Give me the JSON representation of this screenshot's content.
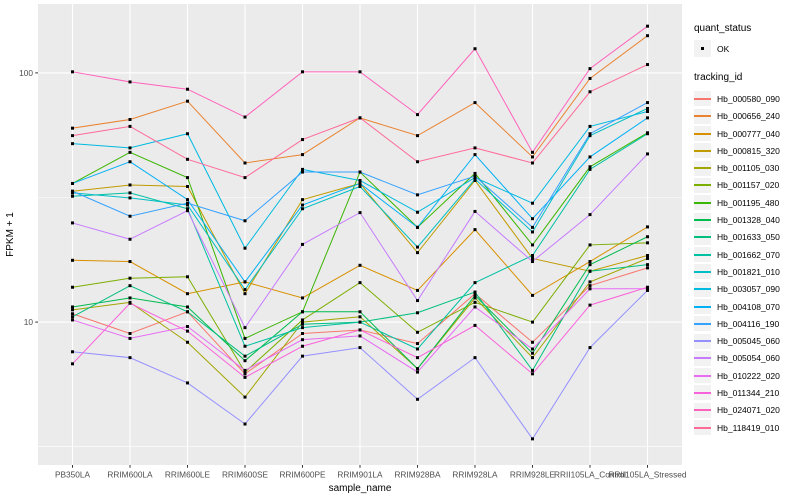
{
  "figure": {
    "background": "#FFFFFF",
    "panel_background": "#EBEBEB",
    "grid_color": "#FFFFFF",
    "tick_color": "#333333",
    "tick_label_color": "#4D4D4D",
    "point_color": "#000000"
  },
  "legend": {
    "quant_status": {
      "title": "quant_status",
      "items": [
        {
          "label": "OK",
          "marker": "black-point",
          "marker_color": "#000000"
        }
      ]
    },
    "tracking_id": {
      "title": "tracking_id"
    }
  },
  "chart_data": {
    "type": "line",
    "title": "",
    "xlabel": "sample_name",
    "ylabel": "FPKM + 1",
    "y_scale": "log10",
    "ylim": [
      2.67,
      189
    ],
    "y_major_ticks": [
      100,
      10
    ],
    "y_tick_labels": [
      "100",
      "10"
    ],
    "y_minor_ticks": [
      31.623,
      3.162
    ],
    "grid": true,
    "legend_position": "right",
    "point_marker": "small-black-square",
    "quant_status": "OK",
    "categories": [
      "PB350LA",
      "RRIM600LA",
      "RRIM600LE",
      "RRIM600SE",
      "RRIM600PE",
      "RRIM901LA",
      "RRIM928BA",
      "RRIM928LA",
      "RRIM928LE",
      "RRII105LA_Control",
      "RRII105LA_Stressed"
    ],
    "series": [
      {
        "name": "Hb_000580_090",
        "color": "#F8766D",
        "values": [
          10.8,
          9.0,
          11.0,
          6.2,
          9.0,
          9.3,
          8.2,
          13.0,
          8.3,
          14.0,
          16.5
        ]
      },
      {
        "name": "Hb_000656_240",
        "color": "#EA8331",
        "values": [
          60,
          65,
          77,
          43.5,
          47,
          66,
          56,
          76,
          46,
          95,
          141
        ]
      },
      {
        "name": "Hb_000777_040",
        "color": "#D89000",
        "values": [
          17.7,
          17.5,
          13.0,
          14.5,
          12.5,
          16.9,
          13.4,
          23.5,
          12.8,
          17.5,
          24.1
        ]
      },
      {
        "name": "Hb_000815_320",
        "color": "#C09B00",
        "values": [
          33.5,
          35.5,
          35.0,
          13.0,
          31.0,
          36.0,
          19.0,
          37.0,
          18.0,
          16.0,
          18.5
        ]
      },
      {
        "name": "Hb_001105_030",
        "color": "#A3A500",
        "values": [
          11.2,
          12.0,
          8.3,
          5.0,
          10.0,
          10.5,
          6.5,
          12.5,
          7.2,
          14.5,
          18.0
        ]
      },
      {
        "name": "Hb_001157_020",
        "color": "#7CAE00",
        "values": [
          13.8,
          15.0,
          15.2,
          6.3,
          10.2,
          14.4,
          9.1,
          12.0,
          10.0,
          20.4,
          20.8
        ]
      },
      {
        "name": "Hb_001195_480",
        "color": "#39B600",
        "values": [
          36.0,
          48.0,
          38.0,
          8.6,
          11.0,
          40.0,
          24.0,
          39.5,
          20.4,
          42.0,
          57.5
        ]
      },
      {
        "name": "Hb_001328_040",
        "color": "#00BB4E",
        "values": [
          11.5,
          12.5,
          11.5,
          7.0,
          11.0,
          11.0,
          6.5,
          12.8,
          7.5,
          17.0,
          22.0
        ]
      },
      {
        "name": "Hb_001633_050",
        "color": "#00BF7D",
        "values": [
          10.5,
          14.0,
          11.0,
          7.3,
          9.8,
          10.0,
          10.9,
          13.2,
          6.4,
          16.0,
          17.0
        ]
      },
      {
        "name": "Hb_001662_070",
        "color": "#00C1A3",
        "values": [
          32.0,
          33.0,
          28.5,
          8.0,
          9.5,
          10.0,
          7.8,
          14.4,
          18.5,
          41.0,
          57.0
        ]
      },
      {
        "name": "Hb_001821_010",
        "color": "#00BFC4",
        "values": [
          33.0,
          31.5,
          29.5,
          13.5,
          28.5,
          35.0,
          20.0,
          37.5,
          23.0,
          56.0,
          72.0
        ]
      },
      {
        "name": "Hb_003057_090",
        "color": "#00BAE0",
        "values": [
          52.0,
          50.0,
          57.0,
          19.8,
          41.0,
          37.0,
          27.6,
          38.0,
          30.0,
          61.0,
          70.0
        ]
      },
      {
        "name": "Hb_004108_070",
        "color": "#00B0F6",
        "values": [
          36.0,
          44.0,
          31.0,
          14.5,
          29.5,
          36.0,
          24.0,
          47.0,
          26.0,
          46.0,
          66.0
        ]
      },
      {
        "name": "Hb_004116_190",
        "color": "#35A2FF",
        "values": [
          33.5,
          26.6,
          30.0,
          25.5,
          40.0,
          40.0,
          32.4,
          38.5,
          24.0,
          57.0,
          76.0
        ]
      },
      {
        "name": "Hb_005045_060",
        "color": "#9590FF",
        "values": [
          7.6,
          7.2,
          5.7,
          3.9,
          7.3,
          7.9,
          4.9,
          7.2,
          3.4,
          7.9,
          13.4
        ]
      },
      {
        "name": "Hb_005054_060",
        "color": "#C77CFF",
        "values": [
          25.0,
          21.5,
          28.0,
          9.5,
          20.5,
          27.5,
          12.2,
          27.8,
          17.5,
          27.0,
          47.3
        ]
      },
      {
        "name": "Hb_010222_020",
        "color": "#E76BF3",
        "values": [
          10.2,
          8.6,
          9.6,
          6.4,
          8.5,
          8.8,
          6.3,
          11.5,
          7.8,
          13.6,
          13.6
        ]
      },
      {
        "name": "Hb_011344_210",
        "color": "#FA62DB",
        "values": [
          6.8,
          11.9,
          9.2,
          6.0,
          8.0,
          9.3,
          7.2,
          9.7,
          6.2,
          11.7,
          13.8
        ]
      },
      {
        "name": "Hb_024071_020",
        "color": "#FF62BC",
        "values": [
          101,
          92,
          86,
          66.5,
          101,
          101,
          68,
          125,
          48,
          104,
          154
        ]
      },
      {
        "name": "Hb_118419_010",
        "color": "#FF6A98",
        "values": [
          56,
          61,
          45,
          38,
          54,
          66,
          44,
          50,
          43.5,
          84,
          108
        ]
      }
    ]
  }
}
